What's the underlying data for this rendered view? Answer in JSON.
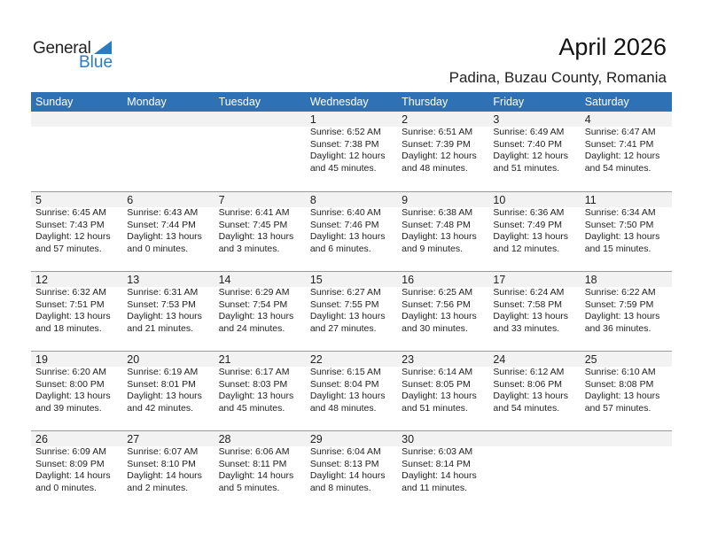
{
  "logo": {
    "text1": "General",
    "text2": "Blue",
    "color": "#2a7bc0"
  },
  "title": "April 2026",
  "location": "Padina, Buzau County, Romania",
  "header_color": "#2e72b5",
  "weekdays": [
    "Sunday",
    "Monday",
    "Tuesday",
    "Wednesday",
    "Thursday",
    "Friday",
    "Saturday"
  ],
  "weeks": [
    [
      null,
      null,
      null,
      {
        "day": "1",
        "sunrise": "Sunrise: 6:52 AM",
        "sunset": "Sunset: 7:38 PM",
        "daylight": "Daylight: 12 hours",
        "minutes": "and 45 minutes."
      },
      {
        "day": "2",
        "sunrise": "Sunrise: 6:51 AM",
        "sunset": "Sunset: 7:39 PM",
        "daylight": "Daylight: 12 hours",
        "minutes": "and 48 minutes."
      },
      {
        "day": "3",
        "sunrise": "Sunrise: 6:49 AM",
        "sunset": "Sunset: 7:40 PM",
        "daylight": "Daylight: 12 hours",
        "minutes": "and 51 minutes."
      },
      {
        "day": "4",
        "sunrise": "Sunrise: 6:47 AM",
        "sunset": "Sunset: 7:41 PM",
        "daylight": "Daylight: 12 hours",
        "minutes": "and 54 minutes."
      }
    ],
    [
      {
        "day": "5",
        "sunrise": "Sunrise: 6:45 AM",
        "sunset": "Sunset: 7:43 PM",
        "daylight": "Daylight: 12 hours",
        "minutes": "and 57 minutes."
      },
      {
        "day": "6",
        "sunrise": "Sunrise: 6:43 AM",
        "sunset": "Sunset: 7:44 PM",
        "daylight": "Daylight: 13 hours",
        "minutes": "and 0 minutes."
      },
      {
        "day": "7",
        "sunrise": "Sunrise: 6:41 AM",
        "sunset": "Sunset: 7:45 PM",
        "daylight": "Daylight: 13 hours",
        "minutes": "and 3 minutes."
      },
      {
        "day": "8",
        "sunrise": "Sunrise: 6:40 AM",
        "sunset": "Sunset: 7:46 PM",
        "daylight": "Daylight: 13 hours",
        "minutes": "and 6 minutes."
      },
      {
        "day": "9",
        "sunrise": "Sunrise: 6:38 AM",
        "sunset": "Sunset: 7:48 PM",
        "daylight": "Daylight: 13 hours",
        "minutes": "and 9 minutes."
      },
      {
        "day": "10",
        "sunrise": "Sunrise: 6:36 AM",
        "sunset": "Sunset: 7:49 PM",
        "daylight": "Daylight: 13 hours",
        "minutes": "and 12 minutes."
      },
      {
        "day": "11",
        "sunrise": "Sunrise: 6:34 AM",
        "sunset": "Sunset: 7:50 PM",
        "daylight": "Daylight: 13 hours",
        "minutes": "and 15 minutes."
      }
    ],
    [
      {
        "day": "12",
        "sunrise": "Sunrise: 6:32 AM",
        "sunset": "Sunset: 7:51 PM",
        "daylight": "Daylight: 13 hours",
        "minutes": "and 18 minutes."
      },
      {
        "day": "13",
        "sunrise": "Sunrise: 6:31 AM",
        "sunset": "Sunset: 7:53 PM",
        "daylight": "Daylight: 13 hours",
        "minutes": "and 21 minutes."
      },
      {
        "day": "14",
        "sunrise": "Sunrise: 6:29 AM",
        "sunset": "Sunset: 7:54 PM",
        "daylight": "Daylight: 13 hours",
        "minutes": "and 24 minutes."
      },
      {
        "day": "15",
        "sunrise": "Sunrise: 6:27 AM",
        "sunset": "Sunset: 7:55 PM",
        "daylight": "Daylight: 13 hours",
        "minutes": "and 27 minutes."
      },
      {
        "day": "16",
        "sunrise": "Sunrise: 6:25 AM",
        "sunset": "Sunset: 7:56 PM",
        "daylight": "Daylight: 13 hours",
        "minutes": "and 30 minutes."
      },
      {
        "day": "17",
        "sunrise": "Sunrise: 6:24 AM",
        "sunset": "Sunset: 7:58 PM",
        "daylight": "Daylight: 13 hours",
        "minutes": "and 33 minutes."
      },
      {
        "day": "18",
        "sunrise": "Sunrise: 6:22 AM",
        "sunset": "Sunset: 7:59 PM",
        "daylight": "Daylight: 13 hours",
        "minutes": "and 36 minutes."
      }
    ],
    [
      {
        "day": "19",
        "sunrise": "Sunrise: 6:20 AM",
        "sunset": "Sunset: 8:00 PM",
        "daylight": "Daylight: 13 hours",
        "minutes": "and 39 minutes."
      },
      {
        "day": "20",
        "sunrise": "Sunrise: 6:19 AM",
        "sunset": "Sunset: 8:01 PM",
        "daylight": "Daylight: 13 hours",
        "minutes": "and 42 minutes."
      },
      {
        "day": "21",
        "sunrise": "Sunrise: 6:17 AM",
        "sunset": "Sunset: 8:03 PM",
        "daylight": "Daylight: 13 hours",
        "minutes": "and 45 minutes."
      },
      {
        "day": "22",
        "sunrise": "Sunrise: 6:15 AM",
        "sunset": "Sunset: 8:04 PM",
        "daylight": "Daylight: 13 hours",
        "minutes": "and 48 minutes."
      },
      {
        "day": "23",
        "sunrise": "Sunrise: 6:14 AM",
        "sunset": "Sunset: 8:05 PM",
        "daylight": "Daylight: 13 hours",
        "minutes": "and 51 minutes."
      },
      {
        "day": "24",
        "sunrise": "Sunrise: 6:12 AM",
        "sunset": "Sunset: 8:06 PM",
        "daylight": "Daylight: 13 hours",
        "minutes": "and 54 minutes."
      },
      {
        "day": "25",
        "sunrise": "Sunrise: 6:10 AM",
        "sunset": "Sunset: 8:08 PM",
        "daylight": "Daylight: 13 hours",
        "minutes": "and 57 minutes."
      }
    ],
    [
      {
        "day": "26",
        "sunrise": "Sunrise: 6:09 AM",
        "sunset": "Sunset: 8:09 PM",
        "daylight": "Daylight: 14 hours",
        "minutes": "and 0 minutes."
      },
      {
        "day": "27",
        "sunrise": "Sunrise: 6:07 AM",
        "sunset": "Sunset: 8:10 PM",
        "daylight": "Daylight: 14 hours",
        "minutes": "and 2 minutes."
      },
      {
        "day": "28",
        "sunrise": "Sunrise: 6:06 AM",
        "sunset": "Sunset: 8:11 PM",
        "daylight": "Daylight: 14 hours",
        "minutes": "and 5 minutes."
      },
      {
        "day": "29",
        "sunrise": "Sunrise: 6:04 AM",
        "sunset": "Sunset: 8:13 PM",
        "daylight": "Daylight: 14 hours",
        "minutes": "and 8 minutes."
      },
      {
        "day": "30",
        "sunrise": "Sunrise: 6:03 AM",
        "sunset": "Sunset: 8:14 PM",
        "daylight": "Daylight: 14 hours",
        "minutes": "and 11 minutes."
      },
      null,
      null
    ]
  ]
}
